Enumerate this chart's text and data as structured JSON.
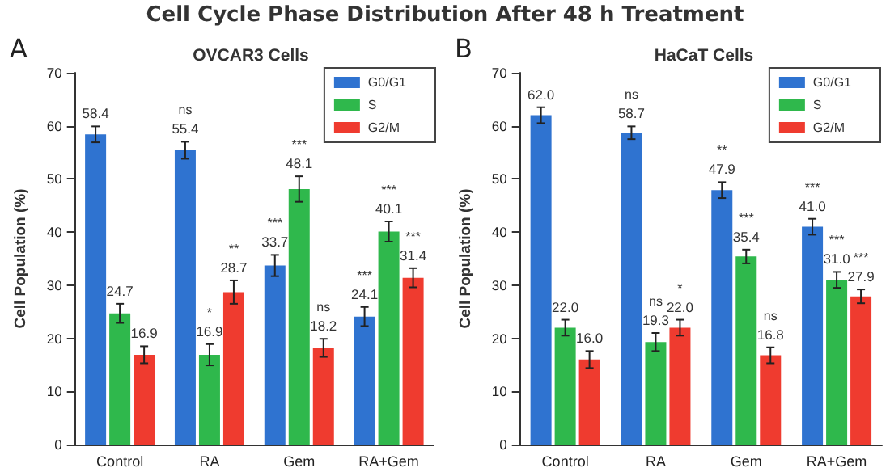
{
  "chart_data": [
    {
      "type": "bar",
      "title": "Cell Cycle Phase Distribution After 48 h Treatment",
      "subtitle": "OVCAR3 Cells",
      "ylabel": "Cell Population (%)",
      "annotations": [
        "A",
        "ns",
        "*",
        "**",
        "***",
        "***",
        "ns",
        "***",
        "***",
        "***"
      ],
      "categories": [
        "Control",
        "RA",
        "Gem",
        "RA+Gem"
      ],
      "series": [
        {
          "name": "G0/G1",
          "color": "#2f73d0",
          "values": [
            58.4,
            55.4,
            33.7,
            24.1
          ],
          "value_labels": [
            "58.4",
            "55.4",
            "33.7",
            "24.1"
          ],
          "errors": [
            1.5,
            1.6,
            2.0,
            1.8
          ]
        },
        {
          "name": "S",
          "color": "#2fb84c",
          "values": [
            24.7,
            16.9,
            48.1,
            40.1
          ],
          "value_labels": [
            "24.7",
            "16.9",
            "48.1",
            "40.1"
          ],
          "errors": [
            1.8,
            2.0,
            2.4,
            1.9
          ]
        },
        {
          "name": "G2/M",
          "color": "#ef3b2f",
          "values": [
            16.9,
            28.7,
            18.2,
            31.4
          ],
          "value_labels": [
            "16.9",
            "28.7",
            "18.2",
            "31.4"
          ],
          "errors": [
            1.6,
            2.2,
            1.7,
            1.8
          ]
        }
      ],
      "ylim": [
        0,
        70
      ],
      "yticks": [
        0,
        10,
        20,
        30,
        40,
        50,
        60,
        70
      ],
      "grid": false,
      "legend": "top right"
    },
    {
      "type": "bar",
      "subtitle": "HaCaT Cells",
      "ylabel": "Cell Population (%)",
      "annotations": [
        "B",
        "ns",
        "ns",
        "*",
        "**",
        "***",
        "ns",
        "***",
        "***",
        "***"
      ],
      "categories": [
        "Control",
        "RA",
        "Gem",
        "RA+Gem"
      ],
      "series": [
        {
          "name": "G0/G1",
          "color": "#2f73d0",
          "values": [
            62.0,
            58.7,
            47.9,
            41.0
          ],
          "value_labels": [
            "62.0",
            "58.7",
            "47.9",
            "41.0"
          ],
          "errors": [
            1.5,
            1.2,
            1.5,
            1.5
          ]
        },
        {
          "name": "S",
          "color": "#2fb84c",
          "values": [
            22.0,
            19.3,
            35.4,
            31.0
          ],
          "value_labels": [
            "22.0",
            "19.3",
            "35.4",
            "31.0"
          ],
          "errors": [
            1.5,
            1.7,
            1.3,
            1.5
          ]
        },
        {
          "name": "G2/M",
          "color": "#ef3b2f",
          "values": [
            16.0,
            22.0,
            16.8,
            27.9
          ],
          "value_labels": [
            "16.0",
            "22.0",
            "16.8",
            "27.9"
          ],
          "errors": [
            1.6,
            1.5,
            1.5,
            1.3
          ]
        }
      ],
      "ylim": [
        0,
        70
      ],
      "yticks": [
        0,
        10,
        20,
        30,
        40,
        50,
        60,
        70
      ],
      "grid": false,
      "legend": "top right"
    }
  ]
}
